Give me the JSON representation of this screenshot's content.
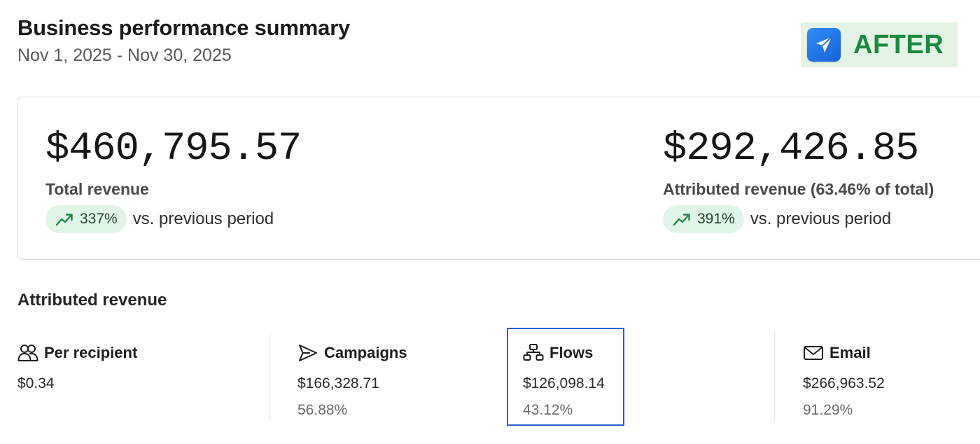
{
  "header": {
    "title": "Business performance summary",
    "date_range": "Nov 1, 2025 - Nov 30, 2025"
  },
  "badge": {
    "label": "AFTER",
    "icon": "paper-plane-icon",
    "color": "#1a8a3f",
    "background": "#e3f4e6"
  },
  "kpis": [
    {
      "value": "$460,795.57",
      "label": "Total revenue",
      "change": "337%",
      "comparison": "vs. previous period",
      "trend": "up"
    },
    {
      "value": "$292,426.85",
      "label": "Attributed revenue (63.46% of total)",
      "change": "391%",
      "comparison": "vs. previous period",
      "trend": "up"
    }
  ],
  "attributed_section": {
    "title": "Attributed revenue",
    "metrics": [
      {
        "icon": "people-icon",
        "title": "Per recipient",
        "value": "$0.34",
        "percent": ""
      },
      {
        "icon": "send-icon",
        "title": "Campaigns",
        "value": "$166,328.71",
        "percent": "56.88%"
      },
      {
        "icon": "flow-icon",
        "title": "Flows",
        "value": "$126,098.14",
        "percent": "43.12%",
        "highlighted": true
      },
      {
        "icon": "mail-icon",
        "title": "Email",
        "value": "$266,963.52",
        "percent": "91.29%"
      }
    ]
  },
  "colors": {
    "positive_pill": "#e1f5e6",
    "positive_arrow": "#1a8a3f",
    "highlight_border": "#2b62c6"
  }
}
